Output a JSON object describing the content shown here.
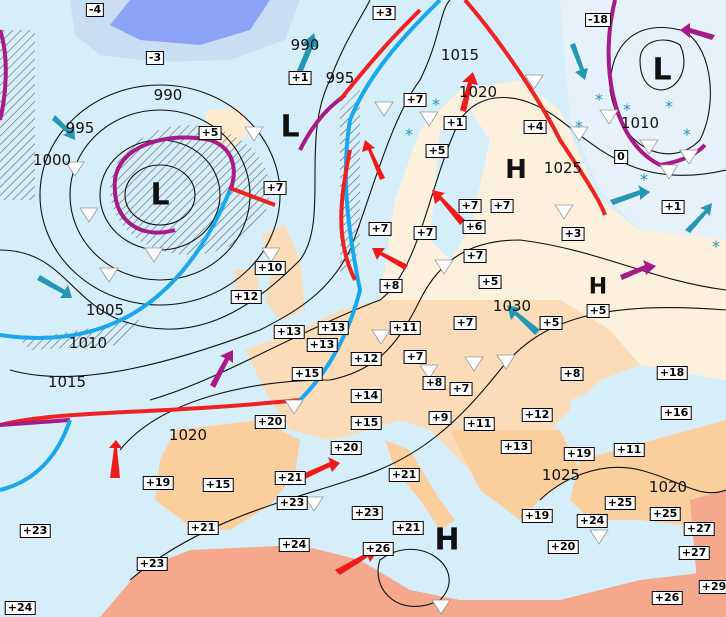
{
  "colors": {
    "sea": "#d6eef9",
    "land_cool": "#fdf0dc",
    "land_warm": "#fbd3a6",
    "land_hot": "#f5a88c",
    "ice": "#7d93f5",
    "warm_front": "#ee2222",
    "cold_front": "#1aa7ee",
    "occluded_front": "#a8198a",
    "isobar": "#111111",
    "cold_advection_arrow": "#2596b4",
    "warm_advection_arrow": "#f01a1a"
  },
  "pressure_systems": [
    {
      "type": "L",
      "label": "L"
    },
    {
      "type": "L",
      "label": "L"
    },
    {
      "type": "L",
      "label": "L"
    },
    {
      "type": "H",
      "label": "H"
    },
    {
      "type": "H",
      "label": "H"
    },
    {
      "type": "H",
      "label": "H"
    }
  ],
  "isobar_labels": [
    "990",
    "995",
    "990",
    "995",
    "1000",
    "1005",
    "1010",
    "1015",
    "1015",
    "1020",
    "1025",
    "1030",
    "1020",
    "1025",
    "1020",
    "1010"
  ],
  "temperatures": [
    "-4",
    "-3",
    "+1",
    "+5",
    "+7",
    "+10",
    "+12",
    "+3",
    "+7",
    "+1",
    "+5",
    "+4",
    "+7",
    "+6",
    "+7",
    "+7",
    "+7",
    "+3",
    "-18",
    "0",
    "+1",
    "+7",
    "+5",
    "+8",
    "+13",
    "+13",
    "+13",
    "+15",
    "+11",
    "+7",
    "+5",
    "+5",
    "+12",
    "+7",
    "+8",
    "+7",
    "+14",
    "+15",
    "+9",
    "+11",
    "+12",
    "+13",
    "+18",
    "+16",
    "+8",
    "+19",
    "+11",
    "+20",
    "+20",
    "+21",
    "+21",
    "+23",
    "+19",
    "+15",
    "+21",
    "+23",
    "+23",
    "+24",
    "+23",
    "+21",
    "+26",
    "+19",
    "+24",
    "+20",
    "+25",
    "+25",
    "+27",
    "+27",
    "+29",
    "+26",
    "+24"
  ],
  "legend_symbols": {
    "shower_icon": "white-triangle",
    "snow_icon": "asterisk"
  }
}
